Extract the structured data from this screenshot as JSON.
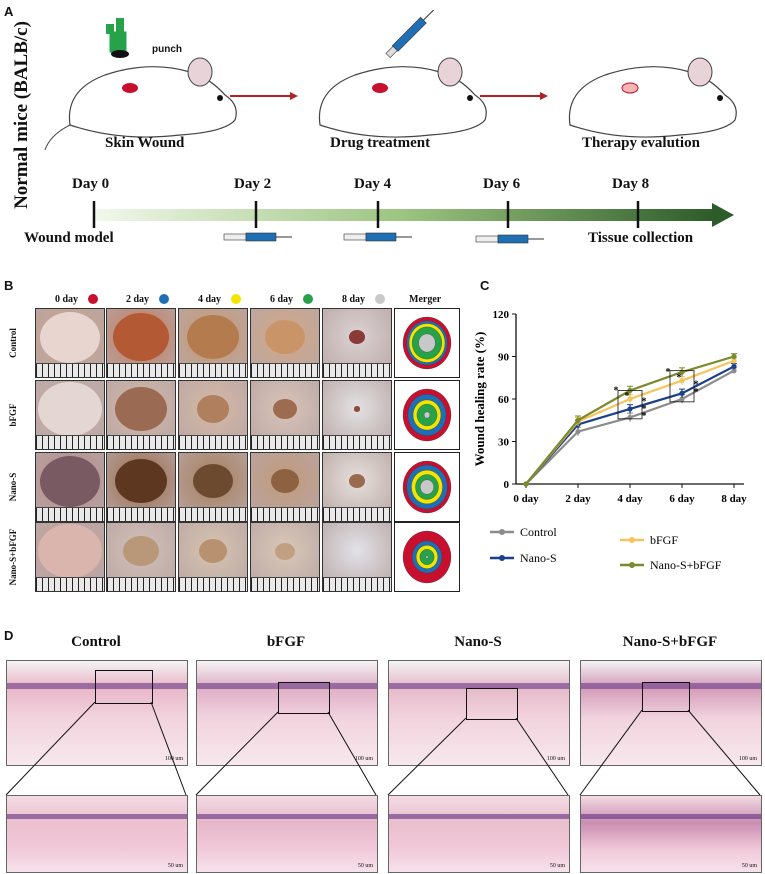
{
  "panelA": {
    "letter": "A",
    "side_label": "Normal mice (BALB/c)",
    "punch_label": "punch",
    "steps": [
      "Skin Wound",
      "Drug treatment",
      "Therapy evalution"
    ],
    "timeline": {
      "days": [
        "Day 0",
        "Day 2",
        "Day 4",
        "Day 6",
        "Day 8"
      ],
      "start_label": "Wound model",
      "end_label": "Tissue collection"
    },
    "colors": {
      "wound": "#c8102e",
      "punch": "#27a24a",
      "syringe": "#1f6fb5",
      "arrow": "#b22222",
      "timeline_dark": "#2e5b2a",
      "timeline_light": "#e6f1dc"
    }
  },
  "panelB": {
    "letter": "B",
    "columns": [
      {
        "label": "0 day",
        "color": "#c8102e"
      },
      {
        "label": "2 day",
        "color": "#1f6fb5"
      },
      {
        "label": "4 day",
        "color": "#f2e600"
      },
      {
        "label": "6 day",
        "color": "#27a24a"
      },
      {
        "label": "8 day",
        "color": "#c8c8c8"
      }
    ],
    "merger_label": "Merger",
    "rows": [
      "Control",
      "bFGF",
      "Nano-S",
      "Nano-S+bFGF"
    ]
  },
  "panelC": {
    "letter": "C"
  },
  "chart_data": {
    "type": "line",
    "ylabel": "Wound healing rate (%)",
    "categories": [
      "0 day",
      "2 day",
      "4 day",
      "6 day",
      "8 day"
    ],
    "ylim": [
      0,
      120
    ],
    "yticks": [
      "0",
      "30",
      "60",
      "90",
      "120"
    ],
    "series": [
      {
        "name": "Control",
        "color": "#8c8c8c",
        "values": [
          0,
          37,
          47,
          60,
          80
        ],
        "errors": [
          0,
          3,
          3,
          3,
          2
        ]
      },
      {
        "name": "Nano-S",
        "color": "#1c3f8a",
        "values": [
          0,
          42,
          53,
          64,
          83
        ],
        "errors": [
          0,
          3,
          3,
          3,
          2
        ]
      },
      {
        "name": "bFGF",
        "color": "#f5c45b",
        "values": [
          0,
          44,
          60,
          73,
          87
        ],
        "errors": [
          0,
          3,
          3,
          3,
          2
        ]
      },
      {
        "name": "Nano-S+bFGF",
        "color": "#7b8a2a",
        "values": [
          0,
          45,
          66,
          79,
          90
        ],
        "errors": [
          0,
          3,
          3,
          3,
          2
        ]
      }
    ],
    "annotations": [
      "*",
      "*",
      "*",
      "*",
      "*",
      "*",
      "*",
      "*",
      "*"
    ],
    "legend_placement": "bottom"
  },
  "panelD": {
    "letter": "D",
    "titles": [
      "Control",
      "bFGF",
      "Nano-S",
      "Nano-S+bFGF"
    ],
    "scale_top": "100 um",
    "scale_bottom": "50 um"
  }
}
